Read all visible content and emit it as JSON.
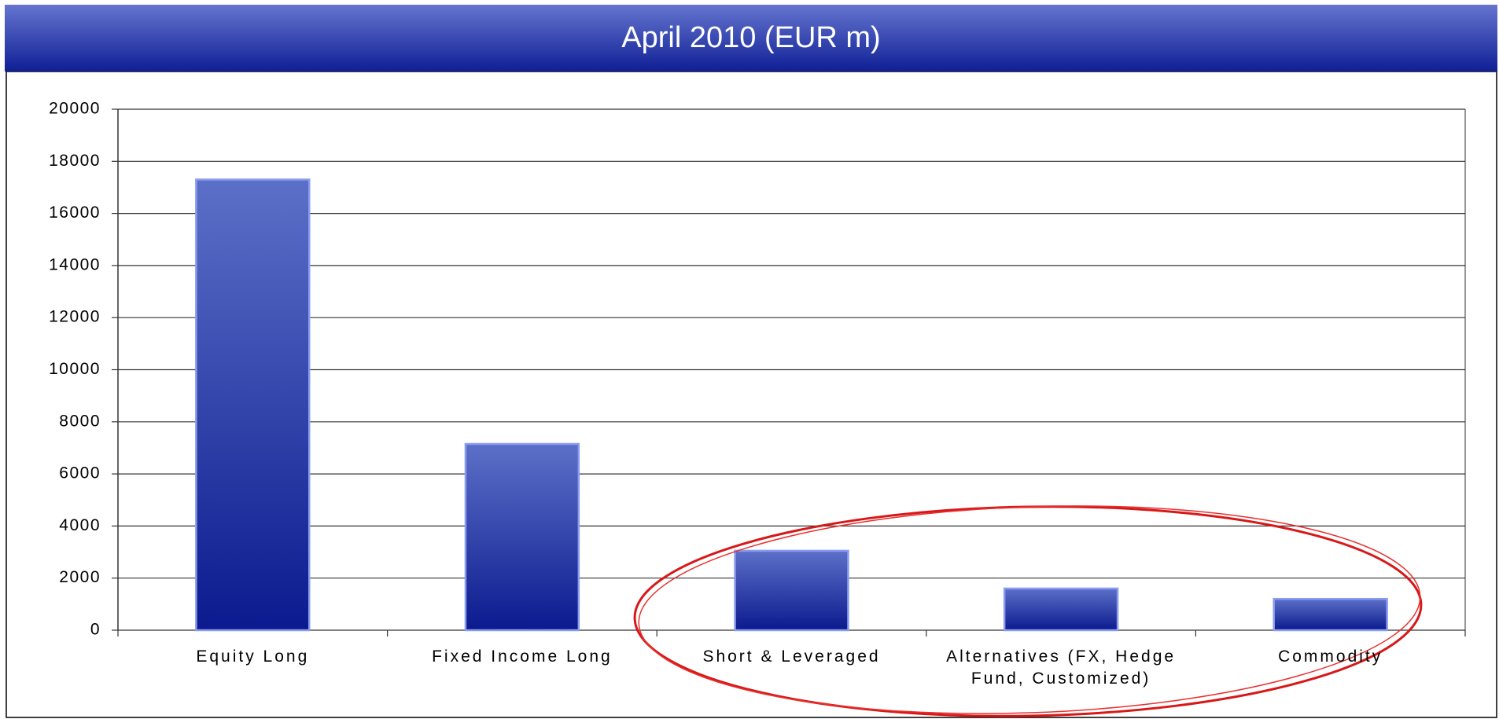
{
  "chart_data": {
    "type": "bar",
    "title": "April 2010 (EUR m)",
    "categories": [
      "Equity Long",
      "Fixed Income Long",
      "Short & Leveraged",
      "Alternatives (FX, Hedge Fund, Customized)",
      "Commodity"
    ],
    "values": [
      17300,
      7150,
      3050,
      1600,
      1200
    ],
    "color": "#2a3aa8",
    "ylim": [
      0,
      20000
    ],
    "yticks": [
      0,
      2000,
      4000,
      6000,
      8000,
      10000,
      12000,
      14000,
      16000,
      18000,
      20000
    ],
    "grid": true
  }
}
